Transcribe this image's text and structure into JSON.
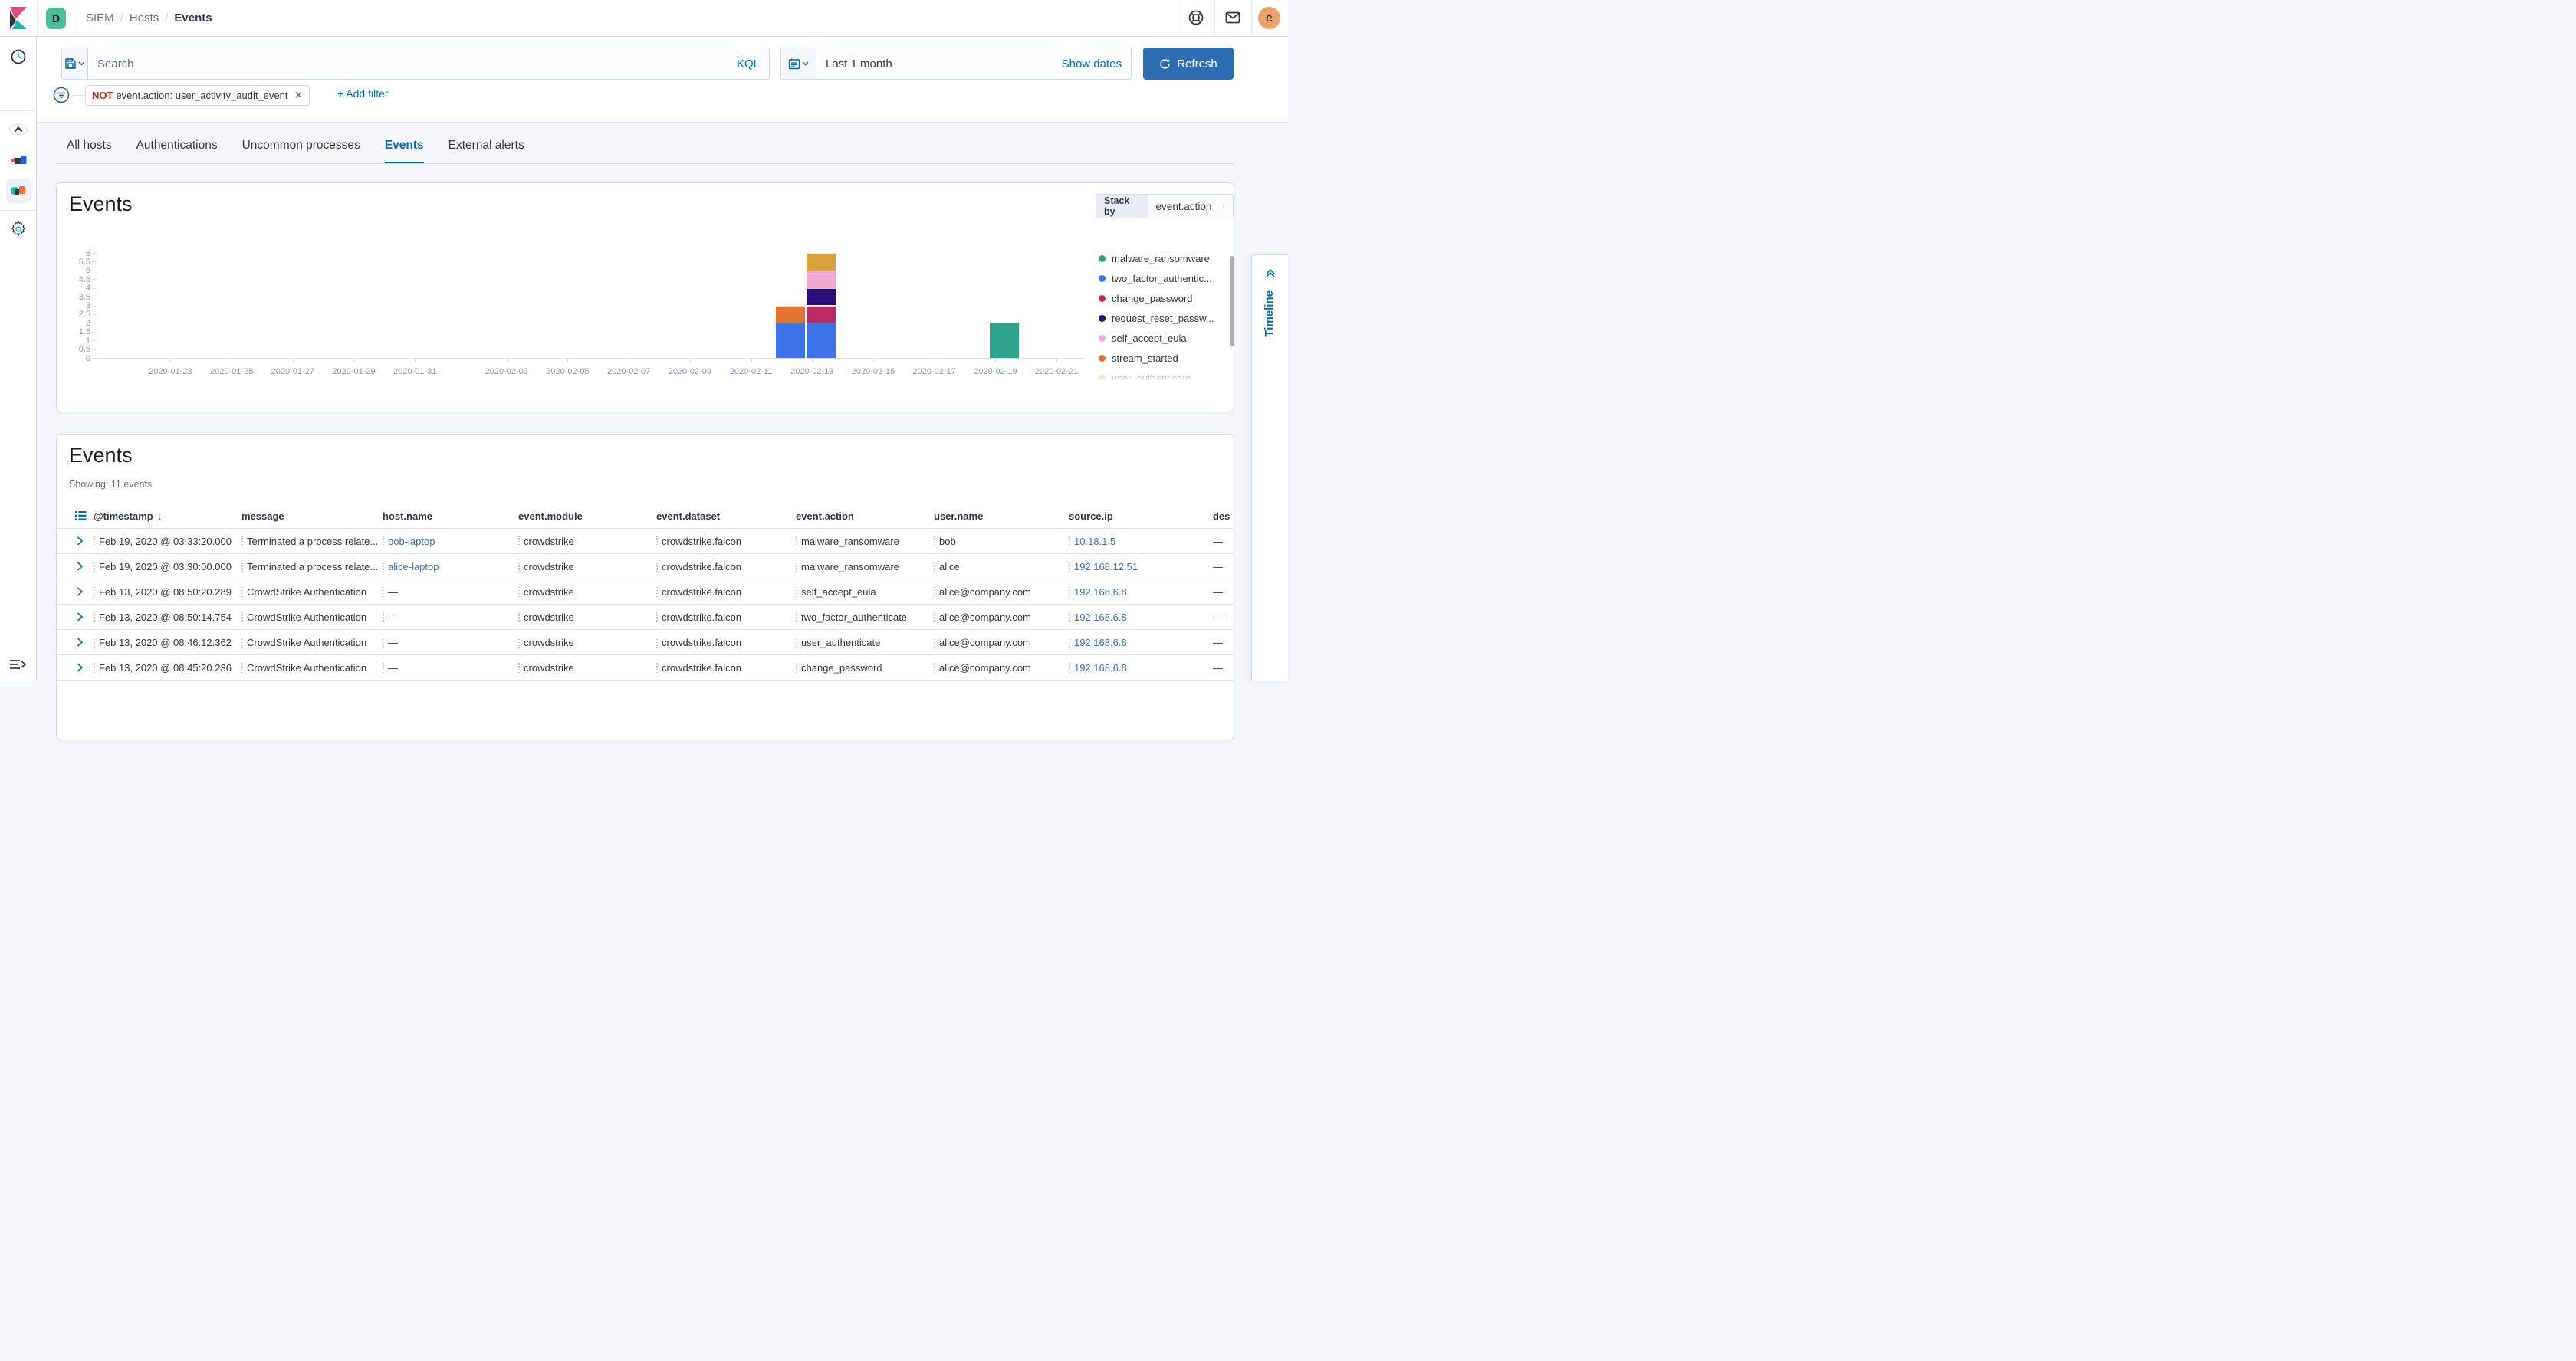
{
  "topbar": {
    "space_badge": "D",
    "breadcrumb": {
      "parents": [
        "SIEM",
        "Hosts"
      ],
      "current": "Events",
      "separator": "/"
    },
    "avatar_initial": "e"
  },
  "query_bar": {
    "search_placeholder": "Search",
    "kql_label": "KQL",
    "date_value": "Last 1 month",
    "show_dates_label": "Show dates",
    "refresh_label": "Refresh"
  },
  "filter_bar": {
    "pill_negate": "NOT",
    "pill_text": "event.action: user_activity_audit_event",
    "add_filter_label": "+ Add filter"
  },
  "tabs": [
    {
      "label": "All hosts",
      "active": false
    },
    {
      "label": "Authentications",
      "active": false
    },
    {
      "label": "Uncommon processes",
      "active": false
    },
    {
      "label": "Events",
      "active": true
    },
    {
      "label": "External alerts",
      "active": false
    }
  ],
  "chart_panel": {
    "title": "Events",
    "stack_by_label": "Stack by",
    "stack_by_value": "event.action"
  },
  "chart_data": {
    "type": "bar",
    "stacked": true,
    "title": "Events",
    "stack_by": "event.action",
    "ylim": [
      0,
      6
    ],
    "y_ticks": [
      0,
      0.5,
      1,
      1.5,
      2,
      2.5,
      3,
      3.5,
      4,
      4.5,
      5,
      5.5,
      6
    ],
    "x_domain": [
      "2020-01-21",
      "2020-02-22"
    ],
    "x_tick_labels": [
      "2020-01-23",
      "2020-01-25",
      "2020-01-27",
      "2020-01-29",
      "2020-01-31",
      "2020-02-03",
      "2020-02-05",
      "2020-02-07",
      "2020-02-09",
      "2020-02-11",
      "2020-02-13",
      "2020-02-15",
      "2020-02-17",
      "2020-02-19",
      "2020-02-21"
    ],
    "legend_position": "right",
    "series_colors": {
      "malware_ransomware": "#2fa28c",
      "two_factor_authenticate": "#3d73e8",
      "change_password": "#bb2a63",
      "request_reset_password": "#2b0e78",
      "self_accept_eula": "#f0a8d3",
      "stream_started": "#e0732f",
      "user_authenticate": "#d9a23c"
    },
    "legend_items": [
      {
        "label": "malware_ransomware",
        "series": "malware_ransomware"
      },
      {
        "label": "two_factor_authentic...",
        "series": "two_factor_authenticate"
      },
      {
        "label": "change_password",
        "series": "change_password"
      },
      {
        "label": "request_reset_passw...",
        "series": "request_reset_password"
      },
      {
        "label": "self_accept_eula",
        "series": "self_accept_eula"
      },
      {
        "label": "stream_started",
        "series": "stream_started"
      },
      {
        "label": "user_authenticate",
        "series": "user_authenticate"
      }
    ],
    "bars": [
      {
        "date": "2020-02-12",
        "total": 3,
        "segments": [
          {
            "series": "two_factor_authenticate",
            "value": 2
          },
          {
            "series": "stream_started",
            "value": 1
          }
        ]
      },
      {
        "date": "2020-02-13",
        "total": 6,
        "segments": [
          {
            "series": "two_factor_authenticate",
            "value": 2
          },
          {
            "series": "change_password",
            "value": 1
          },
          {
            "series": "request_reset_password",
            "value": 1
          },
          {
            "series": "self_accept_eula",
            "value": 1
          },
          {
            "series": "user_authenticate",
            "value": 1
          }
        ]
      },
      {
        "date": "2020-02-19",
        "total": 2,
        "segments": [
          {
            "series": "malware_ransomware",
            "value": 2
          }
        ]
      }
    ]
  },
  "events_panel": {
    "title": "Events",
    "showing_text": "Showing: 11 events"
  },
  "table": {
    "columns": [
      {
        "id": "timestamp",
        "label": "@timestamp",
        "sorted": "desc"
      },
      {
        "id": "message",
        "label": "message"
      },
      {
        "id": "host",
        "label": "host.name"
      },
      {
        "id": "module",
        "label": "event.module"
      },
      {
        "id": "dataset",
        "label": "event.dataset"
      },
      {
        "id": "action",
        "label": "event.action"
      },
      {
        "id": "user",
        "label": "user.name"
      },
      {
        "id": "source_ip",
        "label": "source.ip"
      },
      {
        "id": "dest",
        "label": "des"
      }
    ],
    "rows": [
      {
        "timestamp": "Feb 19, 2020 @ 03:33:20.000",
        "message": "Terminated a process relate...",
        "host": "bob-laptop",
        "host_link": true,
        "module": "crowdstrike",
        "dataset": "crowdstrike.falcon",
        "action": "malware_ransomware",
        "user": "bob",
        "source_ip": "10.18.1.5",
        "dest": "—"
      },
      {
        "timestamp": "Feb 19, 2020 @ 03:30:00.000",
        "message": "Terminated a process relate...",
        "host": "alice-laptop",
        "host_link": true,
        "module": "crowdstrike",
        "dataset": "crowdstrike.falcon",
        "action": "malware_ransomware",
        "user": "alice",
        "source_ip": "192.168.12.51",
        "dest": "—"
      },
      {
        "timestamp": "Feb 13, 2020 @ 08:50:20.289",
        "message": "CrowdStrike Authentication",
        "host": "—",
        "host_link": false,
        "module": "crowdstrike",
        "dataset": "crowdstrike.falcon",
        "action": "self_accept_eula",
        "user": "alice@company.com",
        "source_ip": "192.168.6.8",
        "dest": "—"
      },
      {
        "timestamp": "Feb 13, 2020 @ 08:50:14.754",
        "message": "CrowdStrike Authentication",
        "host": "—",
        "host_link": false,
        "module": "crowdstrike",
        "dataset": "crowdstrike.falcon",
        "action": "two_factor_authenticate",
        "user": "alice@company.com",
        "source_ip": "192.168.6.8",
        "dest": "—"
      },
      {
        "timestamp": "Feb 13, 2020 @ 08:46:12.362",
        "message": "CrowdStrike Authentication",
        "host": "—",
        "host_link": false,
        "module": "crowdstrike",
        "dataset": "crowdstrike.falcon",
        "action": "user_authenticate",
        "user": "alice@company.com",
        "source_ip": "192.168.6.8",
        "dest": "—"
      },
      {
        "timestamp": "Feb 13, 2020 @ 08:45:20.236",
        "message": "CrowdStrike Authentication",
        "host": "—",
        "host_link": false,
        "module": "crowdstrike",
        "dataset": "crowdstrike.falcon",
        "action": "change_password",
        "user": "alice@company.com",
        "source_ip": "192.168.6.8",
        "dest": "—"
      }
    ]
  },
  "timeline": {
    "label": "Timeline"
  },
  "colors": {
    "primary": "#006BB4",
    "refresh_button": "#2e6cb3",
    "link": "#3b73af",
    "negate_red": "#bd271e",
    "panel_border": "#d3dae6",
    "page_bg": "#f5f7fa",
    "text": "#343741",
    "muted": "#69707d",
    "space_badge_teal": "#4dbc98",
    "avatar_orange": "#e8a26a"
  }
}
